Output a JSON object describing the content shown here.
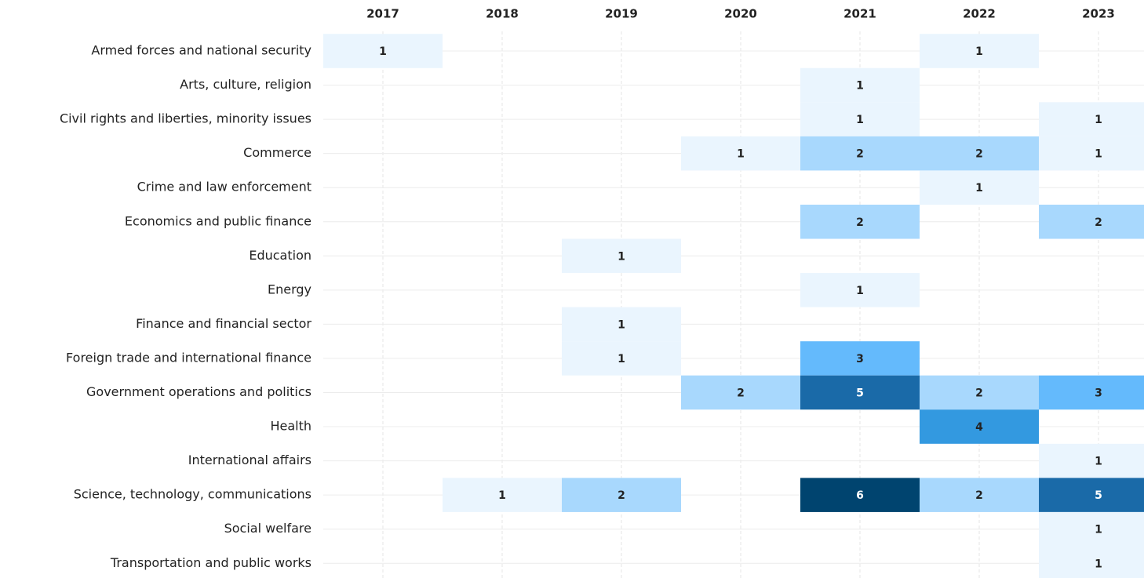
{
  "chart_data": {
    "type": "heatmap",
    "x": [
      "2017",
      "2018",
      "2019",
      "2020",
      "2021",
      "2022",
      "2023"
    ],
    "categories": [
      "Armed forces and national security",
      "Arts, culture, religion",
      "Civil rights and liberties, minority issues",
      "Commerce",
      "Crime and law enforcement",
      "Economics and public finance",
      "Education",
      "Energy",
      "Finance and financial sector",
      "Foreign trade and international finance",
      "Government operations and politics",
      "Health",
      "International affairs",
      "Science, technology, communications",
      "Social welfare",
      "Transportation and public works"
    ],
    "values": [
      [
        1,
        null,
        null,
        null,
        null,
        1,
        null
      ],
      [
        null,
        null,
        null,
        null,
        1,
        null,
        null
      ],
      [
        null,
        null,
        null,
        null,
        1,
        null,
        1
      ],
      [
        null,
        null,
        null,
        1,
        2,
        2,
        1
      ],
      [
        null,
        null,
        null,
        null,
        null,
        1,
        null
      ],
      [
        null,
        null,
        null,
        null,
        2,
        null,
        2
      ],
      [
        null,
        null,
        1,
        null,
        null,
        null,
        null
      ],
      [
        null,
        null,
        null,
        null,
        1,
        null,
        null
      ],
      [
        null,
        null,
        1,
        null,
        null,
        null,
        null
      ],
      [
        null,
        null,
        1,
        null,
        3,
        null,
        null
      ],
      [
        null,
        null,
        null,
        2,
        5,
        2,
        3
      ],
      [
        null,
        null,
        null,
        null,
        null,
        4,
        null
      ],
      [
        null,
        null,
        null,
        null,
        null,
        null,
        1
      ],
      [
        null,
        1,
        2,
        null,
        6,
        2,
        5
      ],
      [
        null,
        null,
        null,
        null,
        null,
        null,
        1
      ],
      [
        null,
        null,
        null,
        null,
        null,
        null,
        1
      ]
    ],
    "colors": [
      "#eaf5fe",
      "#a8d8fd",
      "#64bafc",
      "#3399e0",
      "#1a6aa8",
      "#00446f"
    ],
    "grid": true
  }
}
